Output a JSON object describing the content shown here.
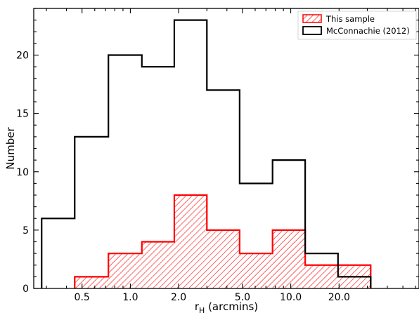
{
  "chart_data": {
    "type": "histogram",
    "xlabel_main": "r",
    "xlabel_sub": "H",
    "xlabel_rest": " (arcmins)",
    "ylabel": "Number",
    "x_scale": "log",
    "xlim": [
      0.25,
      63
    ],
    "ylim": [
      0,
      24
    ],
    "x_ticks": [
      {
        "value": 0.5,
        "label": "0.5"
      },
      {
        "value": 1.0,
        "label": "1.0"
      },
      {
        "value": 2.0,
        "label": "2.0"
      },
      {
        "value": 5.0,
        "label": "5.0"
      },
      {
        "value": 10.0,
        "label": "10.0"
      },
      {
        "value": 20.0,
        "label": "20.0"
      }
    ],
    "y_ticks": [
      0,
      5,
      10,
      15,
      20
    ],
    "bin_edges": [
      0.28,
      0.45,
      0.73,
      1.18,
      1.88,
      3.0,
      4.8,
      7.7,
      12.3,
      19.7,
      31.5
    ],
    "series": [
      {
        "name": "McConnachie (2012)",
        "style": "step",
        "color": "#000000",
        "values": [
          6,
          13,
          20,
          19,
          23,
          17,
          9,
          11,
          3,
          1
        ]
      },
      {
        "name": "This sample",
        "style": "hatched",
        "color": "#ff0000",
        "values": [
          0,
          1,
          3,
          4,
          8,
          5,
          3,
          5,
          2,
          2
        ]
      }
    ],
    "legend": {
      "position": "top-right",
      "entries": [
        "This sample",
        "McConnachie (2012)"
      ]
    },
    "grid": false
  }
}
